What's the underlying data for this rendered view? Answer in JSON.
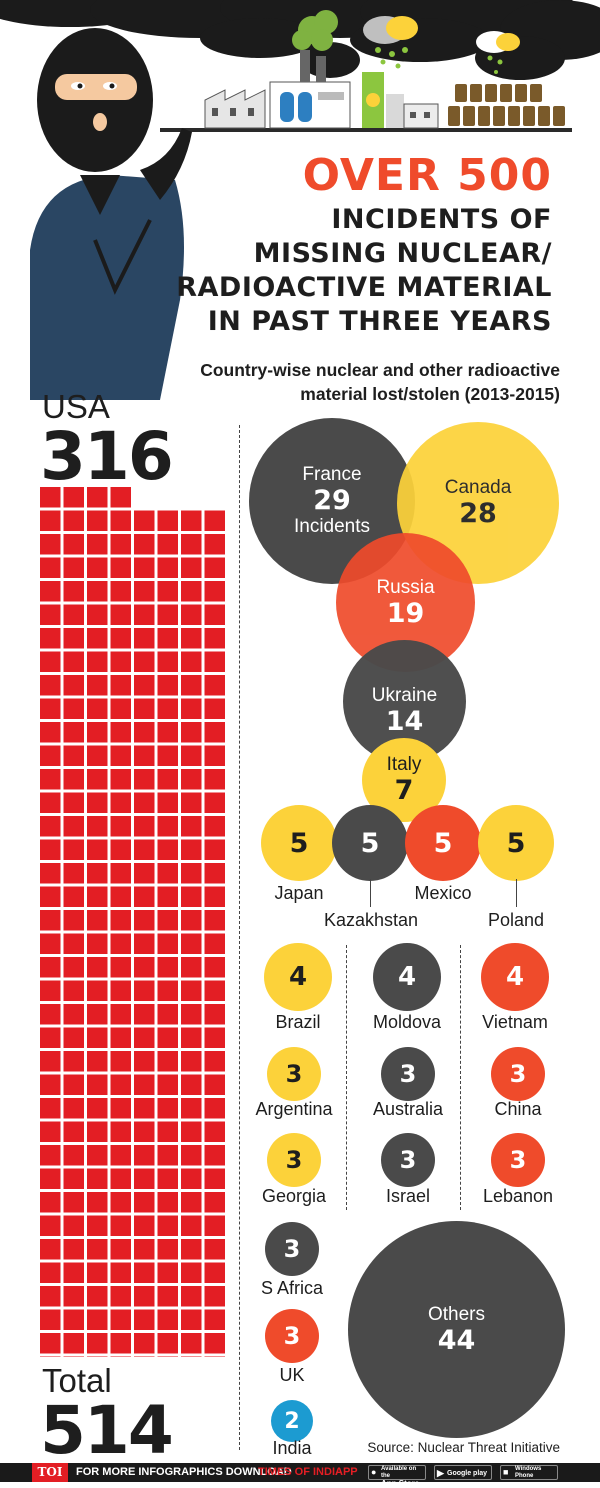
{
  "header": {
    "headline_big": "OVER 500",
    "headline_lines": [
      "INCIDENTS OF",
      "MISSING NUCLEAR/",
      "RADIOACTIVE MATERIAL",
      "IN PAST THREE YEARS"
    ],
    "subtitle_lines": [
      "Country-wise nuclear and other radioactive",
      "material lost/stolen (2013-2015)"
    ]
  },
  "usa": {
    "label": "USA",
    "value": "316"
  },
  "total": {
    "label": "Total",
    "value": "514"
  },
  "chart_data": {
    "type": "bubble",
    "title": "OVER 500 INCIDENTS OF MISSING NUCLEAR/ RADIOACTIVE MATERIAL IN PAST THREE YEARS",
    "subtitle": "Country-wise nuclear and other radioactive material lost/stolen (2013-2015)",
    "unit": "Incidents",
    "total": 514,
    "data": [
      {
        "country": "USA",
        "incidents": 316
      },
      {
        "country": "France",
        "incidents": 29
      },
      {
        "country": "Canada",
        "incidents": 28
      },
      {
        "country": "Russia",
        "incidents": 19
      },
      {
        "country": "Ukraine",
        "incidents": 14
      },
      {
        "country": "Italy",
        "incidents": 7
      },
      {
        "country": "Japan",
        "incidents": 5
      },
      {
        "country": "Kazakhstan",
        "incidents": 5
      },
      {
        "country": "Mexico",
        "incidents": 5
      },
      {
        "country": "Poland",
        "incidents": 5
      },
      {
        "country": "Brazil",
        "incidents": 4
      },
      {
        "country": "Moldova",
        "incidents": 4
      },
      {
        "country": "Vietnam",
        "incidents": 4
      },
      {
        "country": "Argentina",
        "incidents": 3
      },
      {
        "country": "Australia",
        "incidents": 3
      },
      {
        "country": "China",
        "incidents": 3
      },
      {
        "country": "Georgia",
        "incidents": 3
      },
      {
        "country": "Israel",
        "incidents": 3
      },
      {
        "country": "Lebanon",
        "incidents": 3
      },
      {
        "country": "S Africa",
        "incidents": 3
      },
      {
        "country": "UK",
        "incidents": 3
      },
      {
        "country": "India",
        "incidents": 2
      },
      {
        "country": "Others",
        "incidents": 44
      }
    ]
  },
  "bubbles": {
    "france": {
      "name": "France",
      "value": "29",
      "unit": "Incidents"
    },
    "canada": {
      "name": "Canada",
      "value": "28"
    },
    "russia": {
      "name": "Russia",
      "value": "19"
    },
    "ukraine": {
      "name": "Ukraine",
      "value": "14"
    },
    "italy": {
      "name": "Italy",
      "value": "7"
    },
    "japan": {
      "name": "Japan",
      "value": "5"
    },
    "kazakhstan": {
      "name": "Kazakhstan",
      "value": "5"
    },
    "mexico": {
      "name": "Mexico",
      "value": "5"
    },
    "poland": {
      "name": "Poland",
      "value": "5"
    },
    "brazil": {
      "name": "Brazil",
      "value": "4"
    },
    "moldova": {
      "name": "Moldova",
      "value": "4"
    },
    "vietnam": {
      "name": "Vietnam",
      "value": "4"
    },
    "argentina": {
      "name": "Argentina",
      "value": "3"
    },
    "australia": {
      "name": "Australia",
      "value": "3"
    },
    "china": {
      "name": "China",
      "value": "3"
    },
    "georgia": {
      "name": "Georgia",
      "value": "3"
    },
    "israel": {
      "name": "Israel",
      "value": "3"
    },
    "lebanon": {
      "name": "Lebanon",
      "value": "3"
    },
    "safrica": {
      "name": "S Africa",
      "value": "3"
    },
    "uk": {
      "name": "UK",
      "value": "3"
    },
    "india": {
      "name": "India",
      "value": "2"
    },
    "others": {
      "name": "Others",
      "value": "44"
    }
  },
  "source": "Source: Nuclear Threat Initiative",
  "footer": {
    "brand": "TOI",
    "text_a": "FOR MORE  INFOGRAPHICS DOWNLOAD",
    "text_b": "TIMES OF INDIA",
    "text_c": "APP",
    "store_small": "Available on the",
    "app_store": "App Store",
    "google_play": "Google play",
    "windows_small": "Windows",
    "windows_phone": "Phone"
  },
  "colors": {
    "red": "#ef4b2b",
    "yellow": "#fcd23a",
    "dark": "#4a4a4a",
    "blue": "#1c9bd1",
    "waffle": "#e31e24",
    "text": "#1e1e1e"
  }
}
